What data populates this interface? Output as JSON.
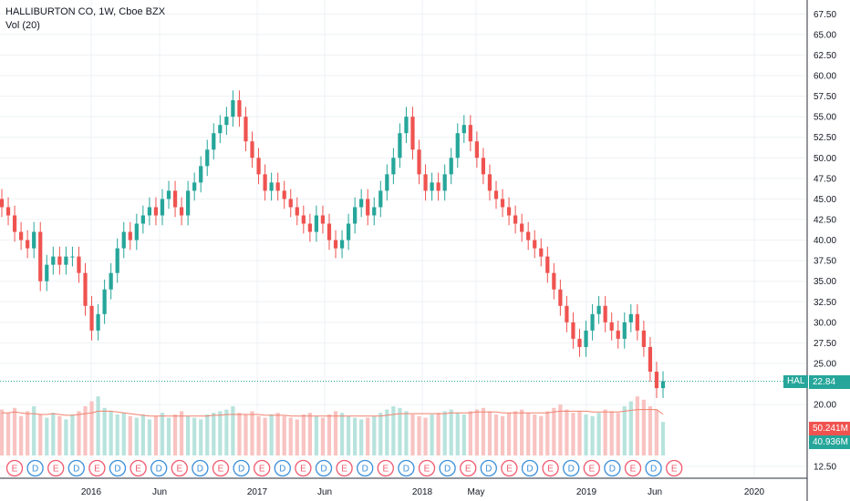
{
  "legend": {
    "title": "HALLIBURTON CO, 1W, Cboe BZX",
    "volume": "Vol (20)"
  },
  "colors": {
    "up": "#26a69a",
    "down": "#ef5350",
    "vol_up": "#b8e3dd",
    "vol_down": "#f8c3c1",
    "vol_ma": "#f0826e",
    "grid": "#eef0f4",
    "earnings": "#f05a6e",
    "dividend": "#3b8fd9"
  },
  "price_label": {
    "ticker": "HAL",
    "value": "22.84"
  },
  "volume_labels": {
    "ma": "50.241M",
    "volume": "40.936M"
  },
  "chart_data": {
    "type": "candlestick",
    "symbol": "HALLIBURTON CO",
    "interval": "1W",
    "exchange": "Cboe BZX",
    "ylim": [
      10,
      70
    ],
    "y_ticks": [
      "67.50",
      "65.00",
      "62.50",
      "60.00",
      "57.50",
      "55.00",
      "52.50",
      "50.00",
      "47.50",
      "45.00",
      "42.50",
      "40.00",
      "37.50",
      "35.00",
      "32.50",
      "30.00",
      "27.50",
      "25.00",
      "20.00",
      "12.50"
    ],
    "x_ticks": [
      "2016",
      "Jun",
      "2017",
      "Jun",
      "2018",
      "May",
      "2019",
      "Jun",
      "2020"
    ],
    "last_price": 22.84,
    "volume_ma_period": 20,
    "volume_ma": "50.241M",
    "volume_last": "40.936M",
    "event_markers": [
      "E",
      "D",
      "E",
      "D",
      "E",
      "D",
      "E",
      "D",
      "E",
      "D",
      "E",
      "D",
      "E",
      "D",
      "E",
      "D",
      "E",
      "D",
      "E",
      "D",
      "E",
      "D",
      "E",
      "D",
      "E",
      "D",
      "E",
      "D",
      "E",
      "D",
      "E",
      "D",
      "E"
    ],
    "closes": [
      44,
      43,
      41,
      40,
      39,
      41,
      35,
      37,
      38,
      37,
      38,
      38,
      36,
      32,
      29,
      31,
      34,
      36,
      39,
      41,
      40,
      42,
      43,
      44,
      43,
      45,
      46,
      44,
      43,
      46,
      47,
      49,
      51,
      53,
      54,
      55,
      57,
      55,
      52,
      50,
      48,
      46,
      47,
      46,
      45,
      44,
      43,
      42,
      41,
      43,
      42,
      40,
      39,
      40,
      42,
      44,
      45,
      43,
      44,
      46,
      48,
      50,
      53,
      55,
      51,
      48,
      46,
      47,
      46,
      48,
      50,
      53,
      54,
      52,
      50,
      48,
      46,
      45,
      44,
      43,
      42,
      41,
      40,
      39,
      38,
      36,
      34,
      32,
      30,
      28,
      27,
      29,
      31,
      32,
      30,
      29,
      28,
      30,
      31,
      29,
      27,
      24,
      22,
      22.84
    ],
    "volumes": [
      56,
      52,
      58,
      48,
      54,
      60,
      50,
      46,
      52,
      48,
      44,
      50,
      54,
      60,
      66,
      72,
      58,
      54,
      50,
      52,
      48,
      46,
      50,
      44,
      48,
      52,
      46,
      50,
      54,
      48,
      46,
      44,
      50,
      52,
      54,
      56,
      60,
      52,
      50,
      54,
      48,
      46,
      50,
      52,
      48,
      46,
      44,
      50,
      52,
      48,
      46,
      50,
      54,
      52,
      48,
      46,
      44,
      46,
      48,
      52,
      56,
      60,
      58,
      54,
      50,
      48,
      46,
      50,
      52,
      54,
      56,
      52,
      50,
      54,
      56,
      58,
      54,
      50,
      48,
      52,
      54,
      56,
      52,
      50,
      48,
      54,
      58,
      62,
      56,
      52,
      54,
      50,
      48,
      52,
      56,
      54,
      52,
      60,
      66,
      72,
      68,
      60,
      56,
      40.936
    ],
    "volume_ma_values": [
      52,
      52,
      53,
      52,
      51,
      51,
      50,
      50,
      51,
      50,
      49,
      49,
      50,
      51,
      52,
      54,
      54,
      54,
      53,
      52,
      51,
      50,
      49,
      48,
      48,
      48,
      48,
      48,
      48,
      48,
      48,
      48,
      48,
      49,
      49,
      50,
      50,
      50,
      50,
      50,
      50,
      49,
      49,
      49,
      49,
      48,
      48,
      48,
      48,
      48,
      48,
      48,
      48,
      48,
      48,
      48,
      48,
      48,
      48,
      48,
      49,
      50,
      51,
      51,
      51,
      51,
      51,
      51,
      51,
      51,
      52,
      52,
      52,
      52,
      53,
      53,
      53,
      53,
      52,
      52,
      52,
      52,
      52,
      52,
      52,
      52,
      53,
      54,
      54,
      54,
      54,
      54,
      53,
      53,
      53,
      53,
      53,
      54,
      55,
      56,
      56,
      56,
      56,
      50.241
    ]
  }
}
